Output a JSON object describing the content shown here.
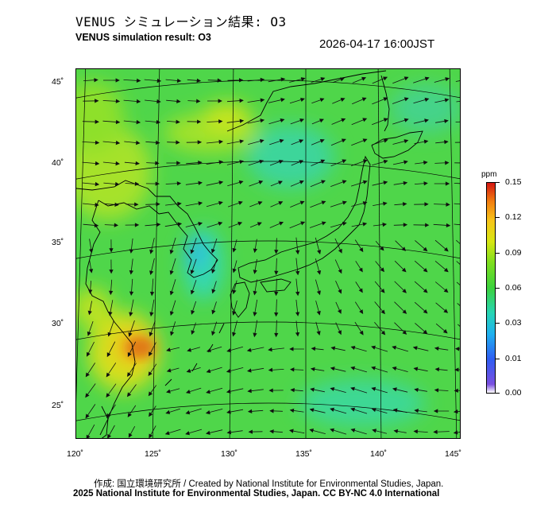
{
  "header": {
    "title_jp": "VENUS シミュレーション結果: O3",
    "title_en": "VENUS simulation result: O3",
    "timestamp": "2026-04-17 16:00JST"
  },
  "map": {
    "lat_labels": [
      "45˚",
      "40˚",
      "35˚",
      "30˚",
      "25˚"
    ],
    "lon_labels": [
      "120˚",
      "125˚",
      "130˚",
      "135˚",
      "140˚",
      "145˚"
    ],
    "field_colors": {
      "ocean_base": "#4fd64a",
      "land_base": "#5bda3c",
      "high": "#e07a12",
      "mid_high": "#f2d418",
      "yellow_green": "#a6e22a",
      "low": "#34d8b0",
      "cyan": "#2ab8e8"
    }
  },
  "colorbar": {
    "unit": "ppm",
    "labels": [
      "0.15",
      "0.12",
      "0.09",
      "0.06",
      "0.03",
      "0.01",
      "0.00"
    ]
  },
  "footer": {
    "credit_jp": "作成: 国立環境研究所 / Created by National Institute for Environmental Studies, Japan.",
    "credit_en": "2025 National Institute for Environmental Studies, Japan. CC BY-NC 4.0 International"
  }
}
